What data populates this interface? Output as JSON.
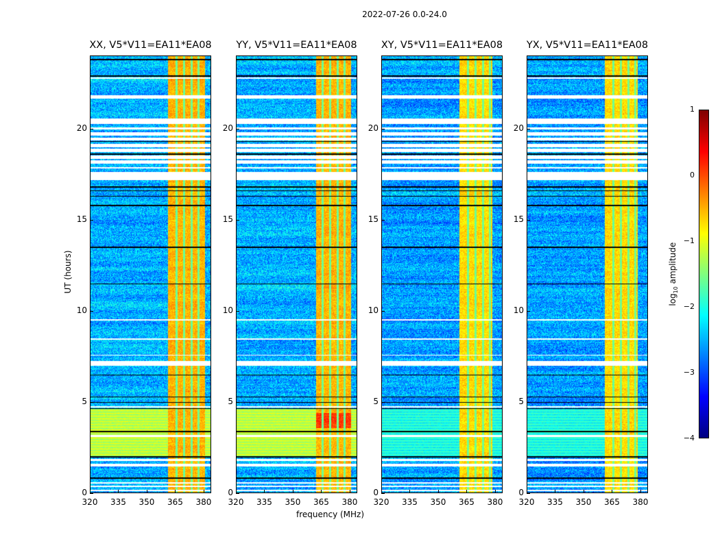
{
  "suptitle": "2022-07-26 0.0-24.0",
  "chart_data": {
    "type": "heatmap",
    "title": "2022-07-26 0.0-24.0",
    "xlabel": "frequency (MHz)",
    "ylabel": "UT (hours)",
    "xlim": [
      320,
      384
    ],
    "ylim": [
      0,
      24
    ],
    "x_ticks": [
      "320",
      "335",
      "350",
      "365",
      "380"
    ],
    "x_tick_values": [
      320,
      335,
      350,
      365,
      380
    ],
    "y_ticks": [
      "0",
      "5",
      "10",
      "15",
      "20"
    ],
    "y_tick_values": [
      0,
      5,
      10,
      15,
      20
    ],
    "panels": [
      {
        "title": "XX, V5*V11=EA11*EA08",
        "band_mhz": [
          361,
          380.5
        ],
        "band_level": -0.5,
        "background_level": -2.5,
        "bright_hours": [
          2.0,
          4.65
        ],
        "bright_level": -1.1
      },
      {
        "title": "YY, V5*V11=EA11*EA08",
        "band_mhz": [
          362,
          380.5
        ],
        "band_level": -0.5,
        "background_level": -2.5,
        "bright_hours": [
          2.0,
          4.65
        ],
        "bright_level": -1.1
      },
      {
        "title": "XY, V5*V11=EA11*EA08",
        "band_mhz": [
          361,
          378.5
        ],
        "band_level": -0.7,
        "background_level": -2.6,
        "bright_hours": [
          2.0,
          4.65
        ],
        "bright_level": -1.9
      },
      {
        "title": "YX, V5*V11=EA11*EA08",
        "band_mhz": [
          361,
          378.5
        ],
        "band_level": -0.7,
        "background_level": -2.6,
        "bright_hours": [
          2.0,
          4.65
        ],
        "bright_level": -1.9
      }
    ],
    "flagged_hours": [
      [
        0.15,
        0.2
      ],
      [
        0.35,
        0.42
      ],
      [
        0.55,
        0.62
      ],
      [
        1.5,
        1.62
      ],
      [
        1.8,
        1.88
      ],
      [
        3.1,
        3.2
      ],
      [
        4.72,
        4.8
      ],
      [
        7.0,
        7.25
      ],
      [
        7.55,
        7.6
      ],
      [
        8.45,
        8.5
      ],
      [
        9.5,
        9.55
      ],
      [
        17.2,
        17.45
      ],
      [
        20.3,
        20.55
      ],
      [
        21.65,
        21.85
      ],
      [
        22.75,
        22.8
      ]
    ],
    "sparse_hours": [
      17.45,
      20.3
    ],
    "dark_lines_hours": [
      0.85,
      2.0,
      3.4,
      4.65,
      5.0,
      5.3,
      6.5,
      11.5,
      13.5,
      15.8,
      16.3,
      16.6,
      16.8,
      18.6,
      19.3,
      22.9,
      23.8
    ],
    "colorbar": {
      "label": "log10 amplitude",
      "label_base": "log",
      "label_sub": "10",
      "label_rest": " amplitude",
      "clim": [
        -4,
        1
      ],
      "ticks": [
        "1",
        "0",
        "−1",
        "−2",
        "−3",
        "−4"
      ],
      "tick_values": [
        1,
        0,
        -1,
        -2,
        -3,
        -4
      ],
      "colormap": "jet"
    }
  }
}
